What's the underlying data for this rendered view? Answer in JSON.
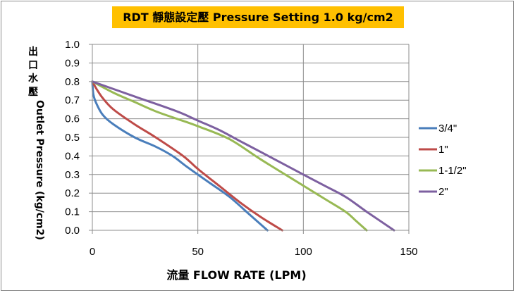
{
  "chart_data": {
    "type": "line",
    "title": "RDT  靜態設定壓  Pressure Setting 1.0 kg/cm2",
    "xlabel": "流量 FLOW RATE (LPM)",
    "ylabel": "出口水壓Outlet Pressure  (kg/cm2)",
    "xlim": [
      0,
      150
    ],
    "ylim": [
      0,
      1.0
    ],
    "xticks": [
      "0",
      "50",
      "100",
      "150"
    ],
    "yticks": [
      "0.0",
      "0.1",
      "0.2",
      "0.3",
      "0.4",
      "0.5",
      "0.6",
      "0.7",
      "0.8",
      "0.9",
      "1.0"
    ],
    "grid": true,
    "legend_position": "right",
    "series": [
      {
        "name": "3/4\"",
        "color": "#4a7ebb",
        "points": [
          [
            0,
            0.8
          ],
          [
            0.5,
            0.73
          ],
          [
            2,
            0.68
          ],
          [
            5,
            0.62
          ],
          [
            10,
            0.57
          ],
          [
            20,
            0.5
          ],
          [
            30,
            0.45
          ],
          [
            38,
            0.4
          ],
          [
            45,
            0.34
          ],
          [
            55,
            0.26
          ],
          [
            65,
            0.18
          ],
          [
            75,
            0.08
          ],
          [
            83,
            0.0
          ]
        ]
      },
      {
        "name": "1\"",
        "color": "#be4b48",
        "points": [
          [
            0,
            0.8
          ],
          [
            2,
            0.76
          ],
          [
            5,
            0.71
          ],
          [
            10,
            0.65
          ],
          [
            20,
            0.57
          ],
          [
            30,
            0.5
          ],
          [
            43,
            0.4
          ],
          [
            50,
            0.33
          ],
          [
            60,
            0.24
          ],
          [
            70,
            0.15
          ],
          [
            80,
            0.07
          ],
          [
            90,
            0.0
          ]
        ]
      },
      {
        "name": "1-1/2\"",
        "color": "#98b954",
        "points": [
          [
            0,
            0.8
          ],
          [
            10,
            0.74
          ],
          [
            20,
            0.69
          ],
          [
            30,
            0.64
          ],
          [
            40,
            0.6
          ],
          [
            50,
            0.56
          ],
          [
            65,
            0.49
          ],
          [
            80,
            0.38
          ],
          [
            100,
            0.24
          ],
          [
            110,
            0.17
          ],
          [
            120,
            0.1
          ],
          [
            125,
            0.05
          ],
          [
            130,
            0.0
          ]
        ]
      },
      {
        "name": "2\"",
        "color": "#7d60a0",
        "points": [
          [
            0,
            0.8
          ],
          [
            20,
            0.72
          ],
          [
            40,
            0.64
          ],
          [
            50,
            0.59
          ],
          [
            60,
            0.54
          ],
          [
            70,
            0.48
          ],
          [
            80,
            0.42
          ],
          [
            100,
            0.3
          ],
          [
            110,
            0.24
          ],
          [
            120,
            0.18
          ],
          [
            130,
            0.1
          ],
          [
            143,
            0.0
          ]
        ]
      }
    ]
  }
}
